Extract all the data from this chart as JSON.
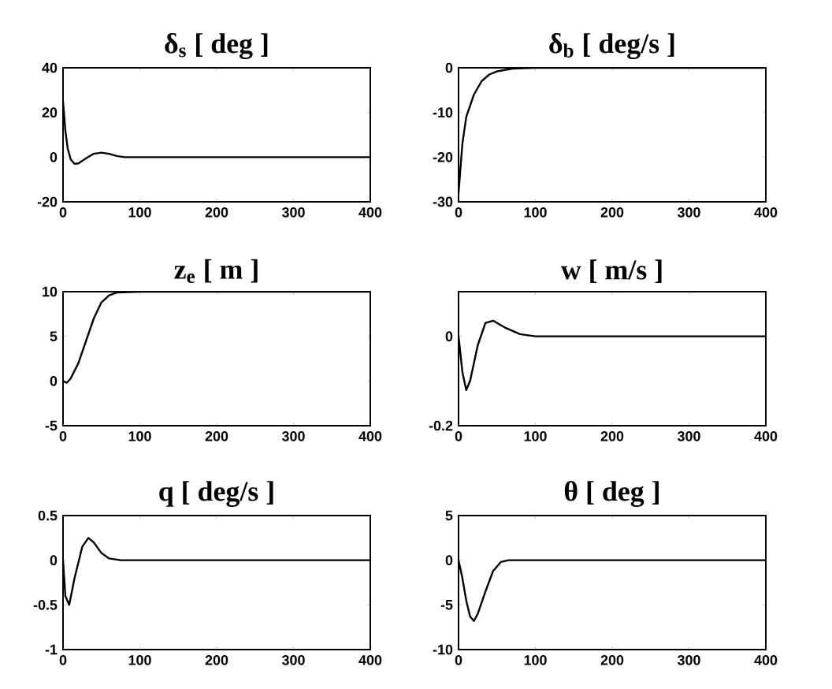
{
  "chart_data": [
    {
      "type": "line",
      "title": "δ$_{s}$ [ deg ]",
      "x": [
        0,
        3,
        6,
        10,
        15,
        20,
        30,
        40,
        50,
        60,
        70,
        80,
        400
      ],
      "values": [
        25,
        12,
        4,
        -1,
        -3,
        -2.8,
        -0.5,
        1.5,
        2,
        1.5,
        0.5,
        0,
        0
      ],
      "color": "#000000",
      "xlim": [
        0,
        400
      ],
      "ylim": [
        -20,
        40
      ],
      "xticks": [
        0,
        100,
        200,
        300,
        400
      ],
      "yticks": [
        -20,
        0,
        20,
        40
      ]
    },
    {
      "type": "line",
      "title": "δ$_{b}$ [ deg/s ]",
      "x": [
        0,
        5,
        10,
        20,
        30,
        40,
        50,
        70,
        100,
        400
      ],
      "values": [
        -28,
        -17,
        -11,
        -6,
        -3,
        -1.5,
        -0.8,
        -0.2,
        0,
        0
      ],
      "color": "#000000",
      "xlim": [
        0,
        400
      ],
      "ylim": [
        -30,
        0
      ],
      "xticks": [
        0,
        100,
        200,
        300,
        400
      ],
      "yticks": [
        -30,
        -20,
        -10,
        0
      ]
    },
    {
      "type": "line",
      "title": "z$_{e}$ [ m ]",
      "x": [
        0,
        5,
        10,
        20,
        30,
        40,
        50,
        60,
        70,
        100,
        400
      ],
      "values": [
        0,
        -0.2,
        0.3,
        2,
        4.5,
        7,
        8.8,
        9.6,
        9.9,
        10,
        10
      ],
      "color": "#000000",
      "xlim": [
        0,
        400
      ],
      "ylim": [
        -5,
        10
      ],
      "xticks": [
        0,
        100,
        200,
        300,
        400
      ],
      "yticks": [
        -5,
        0,
        5,
        10
      ]
    },
    {
      "type": "line",
      "title": "w [ m/s ]",
      "x": [
        0,
        5,
        10,
        15,
        25,
        35,
        45,
        60,
        80,
        100,
        400
      ],
      "values": [
        0,
        -0.08,
        -0.12,
        -0.1,
        -0.02,
        0.03,
        0.035,
        0.02,
        0.005,
        0,
        0
      ],
      "color": "#000000",
      "xlim": [
        0,
        400
      ],
      "ylim": [
        -0.2,
        0.1
      ],
      "xticks": [
        0,
        100,
        200,
        300,
        400
      ],
      "yticks": [
        -0.2,
        0
      ]
    },
    {
      "type": "line",
      "title": "q [ deg/s ]",
      "x": [
        0,
        3,
        8,
        15,
        25,
        33,
        40,
        50,
        60,
        75,
        400
      ],
      "values": [
        0,
        -0.4,
        -0.5,
        -0.2,
        0.15,
        0.25,
        0.2,
        0.08,
        0.02,
        0,
        0
      ],
      "color": "#000000",
      "xlim": [
        0,
        400
      ],
      "ylim": [
        -1,
        0.5
      ],
      "xticks": [
        0,
        100,
        200,
        300,
        400
      ],
      "yticks": [
        -1,
        -0.5,
        0,
        0.5
      ]
    },
    {
      "type": "line",
      "title": "θ [ deg ]",
      "x": [
        0,
        5,
        10,
        15,
        20,
        25,
        35,
        45,
        55,
        65,
        400
      ],
      "values": [
        0,
        -2,
        -4.5,
        -6.3,
        -6.8,
        -6,
        -3.5,
        -1.2,
        -0.2,
        0,
        0
      ],
      "color": "#000000",
      "xlim": [
        0,
        400
      ],
      "ylim": [
        -10,
        5
      ],
      "xticks": [
        0,
        100,
        200,
        300,
        400
      ],
      "yticks": [
        -10,
        -5,
        0,
        5
      ]
    }
  ]
}
